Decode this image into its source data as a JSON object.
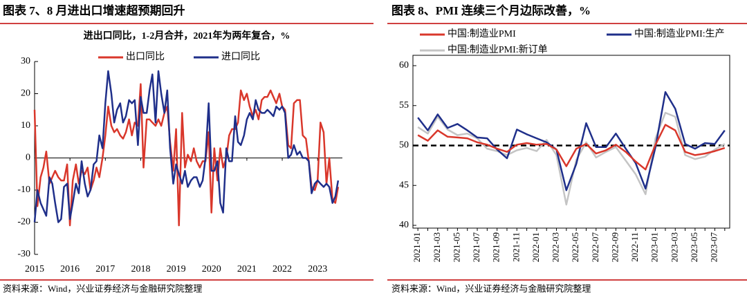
{
  "chart_data": [
    {
      "type": "line",
      "title": "图表 7、8 月进出口增速超预期回升",
      "subtitle": "进出口同比，1-2月合并，2021年为两年复合，%",
      "x": [
        2015,
        2015.08,
        2015.17,
        2015.25,
        2015.33,
        2015.42,
        2015.5,
        2015.58,
        2015.67,
        2015.75,
        2015.83,
        2015.92,
        2016,
        2016.08,
        2016.17,
        2016.25,
        2016.33,
        2016.42,
        2016.5,
        2016.58,
        2016.67,
        2016.75,
        2016.83,
        2016.92,
        2017,
        2017.08,
        2017.17,
        2017.25,
        2017.33,
        2017.42,
        2017.5,
        2017.58,
        2017.67,
        2017.75,
        2017.83,
        2017.92,
        2018,
        2018.08,
        2018.17,
        2018.25,
        2018.33,
        2018.42,
        2018.5,
        2018.58,
        2018.67,
        2018.75,
        2018.83,
        2018.92,
        2019,
        2019.08,
        2019.17,
        2019.25,
        2019.33,
        2019.42,
        2019.5,
        2019.58,
        2019.67,
        2019.75,
        2019.83,
        2019.92,
        2020,
        2020.08,
        2020.17,
        2020.25,
        2020.33,
        2020.42,
        2020.5,
        2020.58,
        2020.67,
        2020.75,
        2020.83,
        2020.92,
        2021,
        2021.08,
        2021.17,
        2021.25,
        2021.33,
        2021.42,
        2021.5,
        2021.58,
        2021.67,
        2021.75,
        2021.83,
        2021.92,
        2022,
        2022.08,
        2022.17,
        2022.25,
        2022.33,
        2022.42,
        2022.5,
        2022.58,
        2022.67,
        2022.75,
        2022.83,
        2022.92,
        2023,
        2023.08,
        2023.17,
        2023.25,
        2023.33,
        2023.42,
        2023.5,
        2023.58
      ],
      "series": [
        {
          "name": "出口同比",
          "color": "#d9372b",
          "values": [
            15,
            -15,
            -6,
            -3,
            2,
            -8,
            -6,
            -4,
            -6,
            -7,
            -7,
            -2,
            -21,
            -7,
            -2,
            -8,
            -4,
            -5,
            -3,
            -10,
            -7,
            -3,
            -6,
            0,
            7,
            16,
            10,
            8,
            9,
            7,
            6,
            8,
            12,
            7,
            11,
            10,
            23,
            -3,
            12,
            12,
            11,
            10,
            12,
            10,
            14,
            16,
            5,
            -4,
            9,
            -21,
            14,
            -3,
            1,
            -1,
            3,
            -1,
            -3,
            -1,
            -1,
            8,
            -17,
            3,
            -7,
            3,
            -3,
            0,
            7,
            9,
            9,
            11,
            21,
            18,
            20,
            16,
            13,
            15,
            12,
            18,
            19,
            19,
            21,
            19,
            17,
            20,
            16,
            15,
            4,
            3,
            17,
            18,
            18,
            7,
            6,
            -1,
            -9,
            -10,
            -7,
            11,
            8,
            -8,
            0,
            -13,
            -14,
            -9
          ]
        },
        {
          "name": "进口同比",
          "color": "#1f2f8a",
          "values": [
            -20,
            -10,
            -14,
            -16,
            -18,
            -6,
            -8,
            -14,
            -20,
            -19,
            -9,
            -8,
            -19,
            -14,
            -8,
            -11,
            -1,
            -8,
            -12,
            -10,
            -2,
            -1,
            7,
            3,
            17,
            27,
            20,
            11,
            15,
            17,
            11,
            13,
            18,
            17,
            18,
            4,
            19,
            14,
            14,
            21,
            26,
            11,
            27,
            20,
            14,
            21,
            3,
            -8,
            -2,
            -5,
            -8,
            -4,
            -9,
            -7,
            -6,
            -6,
            -9,
            -7,
            0,
            17,
            -4,
            -4,
            -1,
            -14,
            -17,
            3,
            -1,
            -1,
            13,
            5,
            4,
            7,
            12,
            14,
            12,
            18,
            15,
            14,
            14,
            15,
            14,
            13,
            16,
            15,
            16,
            14,
            0,
            1,
            4,
            1,
            2,
            0,
            0,
            -1,
            -11,
            -8,
            -7,
            -8,
            -9,
            -8,
            -9,
            -14,
            -12,
            -7
          ]
        }
      ],
      "xlim": [
        2015,
        2023.7
      ],
      "xticks": [
        2015,
        2016,
        2017,
        2018,
        2019,
        2020,
        2021,
        2022,
        2023
      ],
      "ylim": [
        -30,
        30
      ],
      "yticks": [
        -30,
        -20,
        -10,
        0,
        10,
        20,
        30
      ],
      "legend": "top",
      "source": "资料来源：Wind，兴业证券经济与金融研究院整理"
    },
    {
      "type": "line",
      "title": "图表 8、PMI 连续三个月边际改善，%",
      "categories": [
        "2021-01",
        null,
        "2021-03",
        null,
        "2021-05",
        null,
        "2021-07",
        null,
        "2021-09",
        null,
        "2021-11",
        null,
        "2022-01",
        null,
        "2022-03",
        null,
        "2022-05",
        null,
        "2022-07",
        null,
        "2022-09",
        null,
        "2022-11",
        null,
        "2023-01",
        null,
        "2023-03",
        null,
        "2023-05",
        null,
        "2023-07",
        null
      ],
      "series": [
        {
          "name": "中国:制造业PMI",
          "color": "#d9372b",
          "values": [
            51.3,
            50.6,
            51.9,
            51.1,
            51.0,
            50.9,
            50.4,
            50.1,
            49.6,
            49.2,
            50.1,
            50.3,
            50.1,
            50.2,
            49.5,
            47.4,
            49.6,
            50.2,
            49.0,
            49.4,
            50.1,
            49.2,
            48.0,
            47.0,
            50.1,
            52.6,
            51.9,
            49.2,
            48.8,
            49.0,
            49.3,
            49.7
          ]
        },
        {
          "name": "中国:制造业PMI:生产",
          "color": "#1f2f8a",
          "values": [
            53.5,
            51.9,
            53.9,
            52.2,
            52.7,
            51.9,
            51.0,
            50.9,
            49.5,
            48.4,
            52.0,
            51.4,
            50.9,
            50.4,
            49.5,
            44.4,
            47.7,
            52.8,
            49.8,
            49.8,
            51.5,
            49.6,
            47.8,
            44.6,
            49.8,
            56.7,
            54.6,
            50.2,
            49.6,
            50.3,
            50.2,
            51.9
          ]
        },
        {
          "name": "中国:制造业PMI:新订单",
          "color": "#c4c4c4",
          "values": [
            52.3,
            51.5,
            53.6,
            52.0,
            51.3,
            51.5,
            50.9,
            49.6,
            49.3,
            48.8,
            49.4,
            49.7,
            49.3,
            50.7,
            48.8,
            42.6,
            48.2,
            50.4,
            48.5,
            49.2,
            49.8,
            48.1,
            46.4,
            43.9,
            50.9,
            54.1,
            53.6,
            48.8,
            48.3,
            48.6,
            49.5,
            50.2
          ]
        }
      ],
      "ylim": [
        40,
        60
      ],
      "yticks": [
        40,
        45,
        50,
        55,
        60
      ],
      "reference_line": 50,
      "legend": "top-left",
      "source": "资料来源：Wind，兴业证券经济与金融研究院整理"
    }
  ]
}
